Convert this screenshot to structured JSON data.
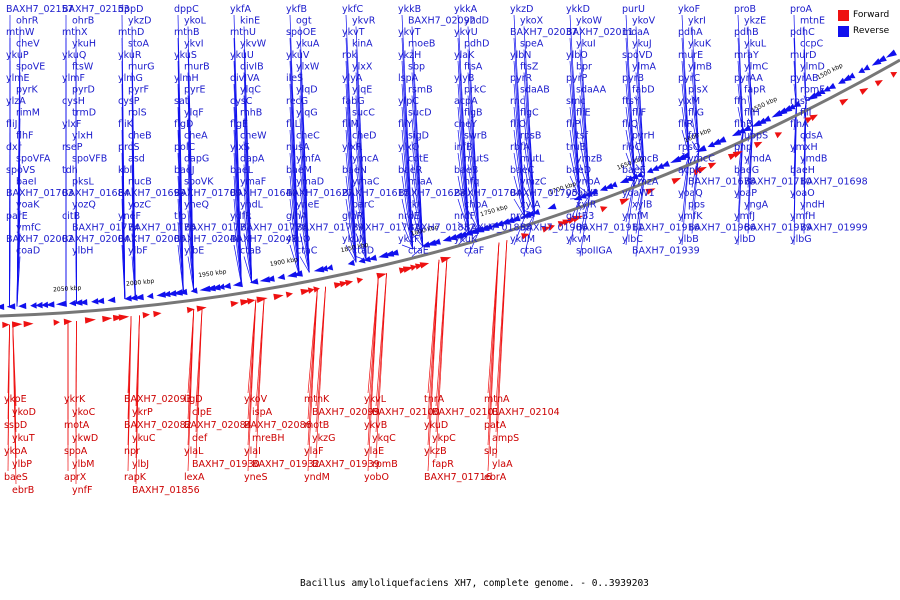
{
  "caption": "Bacillus amyloliquefaciens XH7, complete genome. - 0..3939203",
  "legend": {
    "forward": {
      "label": "Forward",
      "color": "#ee1111"
    },
    "reverse": {
      "label": "Reverse",
      "color": "#1111ee"
    }
  },
  "scale_labels": [
    "1500 kbp",
    "1550 kbp",
    "1600 kbp",
    "1650 kbp",
    "1700 kbp",
    "1750 kbp",
    "1800 kbp",
    "1850 kbp",
    "1900 kbp",
    "1950 kbp",
    "2000 kbp",
    "2050 kbp"
  ],
  "forward_labels": [
    "ykoE",
    "ykrK",
    "BAXH7_02093",
    "ligD",
    "ykoV",
    "mtnK",
    "ykvL",
    "tnrA",
    "mtnA",
    "ykoD",
    "ykoC",
    "ykrP",
    "clpE",
    "ispA",
    "BAXH7_02099",
    "BAXH7_02100",
    "BAXH7_02101",
    "BAXH7_02104",
    "sspD",
    "motA",
    "BAXH7_02082",
    "BAXH7_02084",
    "BAXH7_02086",
    "motB",
    "ykvB",
    "ykuD",
    "patA",
    "ykuT",
    "ykwD",
    "ykuC",
    "def",
    "mreBH",
    "ykzG",
    "ykqC",
    "ykpC",
    "ampS",
    "ykoA",
    "spoA",
    "npr",
    "ylaL",
    "ylaI",
    "ylaF",
    "ylaE",
    "ykzB",
    "slp",
    "ylbP",
    "ylbM",
    "ylbJ",
    "BAXH7_01930",
    "BAXH7_01932",
    "BAXH7_01939",
    "rpmB",
    "fapR",
    "ylaA",
    "baeS",
    "aprX",
    "rapK",
    "lexA",
    "yneS",
    "yndM",
    "yobO",
    "BAXH7_01716",
    "ebrA",
    "ebrB",
    "ynfF",
    "BAXH7_01856"
  ],
  "reverse_labels": [
    "BAXH7_02157",
    "BAXH7_02153",
    "dppD",
    "dppC",
    "ykfA",
    "ykfB",
    "ykfC",
    "ykkB",
    "ykkA",
    "ykzD",
    "ykkD",
    "purU",
    "ykoF",
    "proB",
    "proA",
    "ohrR",
    "ohrB",
    "ykzD",
    "ykoL",
    "kinE",
    "ogt",
    "ykvR",
    "BAXH7_02092",
    "yhdD",
    "ykoX",
    "ykoW",
    "ykoV",
    "ykrI",
    "ykzE",
    "mtnE",
    "mtnW",
    "mtnX",
    "mtnD",
    "mtnB",
    "mtnU",
    "spoOE",
    "ykvT",
    "ykvT",
    "ykvU",
    "BAXH7_02037",
    "BAXH7_02011",
    "moaA",
    "pdhA",
    "pdhB",
    "pdhC",
    "cheV",
    "ykuH",
    "stoA",
    "ykvI",
    "ykvW",
    "ykuA",
    "kinA",
    "moeB",
    "pdhD",
    "speA",
    "ykuI",
    "ykuJ",
    "ykuK",
    "ykuL",
    "ccpC",
    "ykuP",
    "ykuQ",
    "ykuR",
    "ykuS",
    "ykuU",
    "ykuV",
    "rok",
    "ykzH",
    "ylaK",
    "ylbN",
    "ylbO",
    "spoVD",
    "murE",
    "mraY",
    "murD",
    "spoVE",
    "ftsW",
    "murG",
    "murB",
    "divIB",
    "ylxW",
    "ylxX",
    "sbp",
    "ftsA",
    "ftsZ",
    "bpr",
    "ylmA",
    "ylmB",
    "ylmC",
    "ylmD",
    "ylmE",
    "ylmF",
    "ylmG",
    "ylmH",
    "divIVA",
    "ileS",
    "ylyA",
    "lspA",
    "ylyB",
    "pyrR",
    "pyrP",
    "pyrB",
    "pyrC",
    "pyrAA",
    "pyrAB",
    "pyrK",
    "pyrD",
    "pyrF",
    "pyrE",
    "ylqC",
    "ylqD",
    "ylqE",
    "rsmB",
    "prkC",
    "sdaAB",
    "sdaAA",
    "fabD",
    "plsX",
    "fapR",
    "rpmF",
    "ylzA",
    "cysH",
    "cysP",
    "sat",
    "cysC",
    "recG",
    "fabG",
    "ylpC",
    "acpA",
    "rnc",
    "smc",
    "ftsY",
    "ylxM",
    "ffh",
    "rpsP",
    "rimM",
    "trmD",
    "rplS",
    "ylqF",
    "rnhB",
    "ylqG",
    "sucC",
    "sucD",
    "flgB",
    "flgC",
    "fliE",
    "fliF",
    "fliG",
    "fliH",
    "fliI",
    "fliJ",
    "ylxF",
    "fliK",
    "flgD",
    "flgE",
    "fliL",
    "fliM",
    "fliY",
    "cheY",
    "fliO",
    "fliP",
    "fliQ",
    "fliR",
    "flhB",
    "flhA",
    "flhF",
    "ylxH",
    "cheB",
    "cheA",
    "cheW",
    "cheC",
    "cheD",
    "sigD",
    "swrB",
    "rpsB",
    "tsf",
    "pyrH",
    "frr",
    "uppS",
    "cdsA",
    "dxr",
    "rseP",
    "proS",
    "polC",
    "ylxS",
    "nusA",
    "ylxR",
    "ylxQ",
    "infB",
    "rbfA",
    "truB",
    "ribC",
    "rpsO",
    "pnp",
    "ymxH",
    "spoVFA",
    "spoVFB",
    "asd",
    "dapG",
    "dapA",
    "ymfA",
    "ymcA",
    "cotE",
    "mutS",
    "mutL",
    "ymzB",
    "ymcB",
    "ymcC",
    "ymdA",
    "ymdB",
    "spoVS",
    "tdh",
    "kbl",
    "baeJ",
    "baeL",
    "baeM",
    "baeN",
    "baeR",
    "baeB",
    "baeC",
    "baeD",
    "baeE",
    "acpK",
    "baeG",
    "baeH",
    "baeI",
    "pksL",
    "nucB",
    "spoVK",
    "ymaF",
    "ymaD",
    "ymaC",
    "miaA",
    "hfq",
    "ymzC",
    "ynbA",
    "ymzA",
    "BAXH7_01678",
    "BAXH7_01710",
    "BAXH7_01698",
    "BAXH7_01703",
    "BAXH7_01684",
    "BAXH7_01699",
    "BAXH7_01709",
    "BAXH7_01640",
    "BAXH7_01627",
    "BAXH7_01615",
    "BAXH7_01628",
    "BAXH7_01704",
    "BAXH7_01705",
    "yoaW2",
    "yoaW1",
    "yoaQ",
    "yoaP",
    "yoaO",
    "yoaK",
    "yozQ",
    "yozC",
    "yneQ",
    "yndL",
    "yneE",
    "parC",
    "tkt",
    "chbA",
    "xylA",
    "xylR",
    "xylB",
    "pps",
    "yngA",
    "yndH",
    "parE",
    "citB",
    "yneF",
    "tlp",
    "ydfR",
    "glnA",
    "glnR",
    "nrdE",
    "nrdF",
    "nrdI",
    "gutB3",
    "ymfM",
    "ymfK",
    "ymfJ",
    "ymfH",
    "ymfC",
    "BAXH7_01774",
    "BAXH7_01776",
    "BAXH7_01777",
    "BAXH7_01778",
    "BAXH7_01779",
    "BAXH7_01782",
    "BAXH7_01832",
    "BAXH7_01858",
    "BAXH7_01906",
    "BAXH7_01911",
    "BAXH7_01916",
    "BAXH7_01966",
    "BAXH7_01979",
    "BAXH7_01999",
    "BAXH7_02002",
    "BAXH7_02004",
    "BAXH7_02005",
    "BAXH7_02046",
    "BAXH7_02048",
    "ykuO",
    "ykuN",
    "ykzF",
    "ykuK",
    "ykuM",
    "ykvM",
    "ylbC",
    "ylbB",
    "ylbD",
    "ylbG",
    "coaD",
    "ylbH",
    "ylbF",
    "ylbE",
    "ctaB",
    "ctaC",
    "ctaD",
    "ctaE",
    "ctaF",
    "ctaG",
    "spoIIGA",
    "BAXH7_01939"
  ]
}
